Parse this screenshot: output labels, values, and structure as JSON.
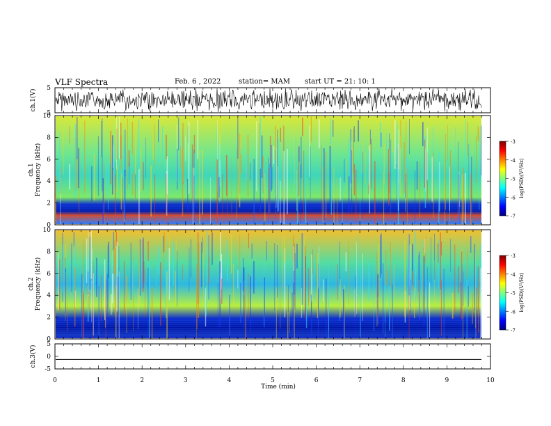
{
  "header": {
    "title": "VLF Spectra",
    "date": "Feb. 6 , 2022",
    "station": "station= MAM",
    "start": "start  UT =  21: 10: 1"
  },
  "chart_data": [
    {
      "type": "line",
      "panel": "ch1-waveform",
      "ylabel": "ch.1(V)",
      "ylim": [
        -5,
        5
      ],
      "yticks": [
        "5",
        "-5"
      ],
      "description_series": "dense noisy waveform"
    },
    {
      "type": "heatmap",
      "panel": "ch1-spectrogram",
      "ylabel_line1": "ch.1",
      "ylabel_line2": "Frequency  (kHz)",
      "ylim": [
        0,
        10
      ],
      "yticks": [
        "0",
        "2",
        "4",
        "6",
        "8",
        "10"
      ],
      "colorbar": {
        "label": "log(PSD)(V²/Hz)",
        "range": [
          -7,
          -3
        ],
        "ticks": [
          "-3",
          "-4",
          "-5",
          "-6",
          "-7"
        ]
      }
    },
    {
      "type": "heatmap",
      "panel": "ch2-spectrogram",
      "ylabel_line1": "ch.2",
      "ylabel_line2": "Frequency  (kHz)",
      "ylim": [
        0,
        10
      ],
      "yticks": [
        "0",
        "2",
        "4",
        "6",
        "8",
        "10"
      ],
      "colorbar": {
        "label": "log(PSD)(V²/Hz)",
        "range": [
          -7,
          -3
        ],
        "ticks": [
          "-3",
          "-4",
          "-5",
          "-6",
          "-7"
        ]
      }
    },
    {
      "type": "line",
      "panel": "ch3-waveform",
      "ylabel": "ch.3(V)",
      "ylim": [
        -5,
        5
      ],
      "yticks": [
        "5",
        "0",
        "-5"
      ],
      "x": [
        0,
        10
      ],
      "y": [
        -1.2,
        -1.2
      ]
    }
  ],
  "xaxis": {
    "label": "Time  (min)",
    "range": [
      0,
      10
    ],
    "ticks": [
      "0",
      "1",
      "2",
      "3",
      "4",
      "5",
      "6",
      "7",
      "8",
      "9",
      "10"
    ]
  },
  "colors": {
    "jet": [
      "#00007f",
      "#0000ff",
      "#007fff",
      "#00ffff",
      "#7fff7f",
      "#ffff00",
      "#ff7f00",
      "#ff0000",
      "#7f0000"
    ]
  }
}
